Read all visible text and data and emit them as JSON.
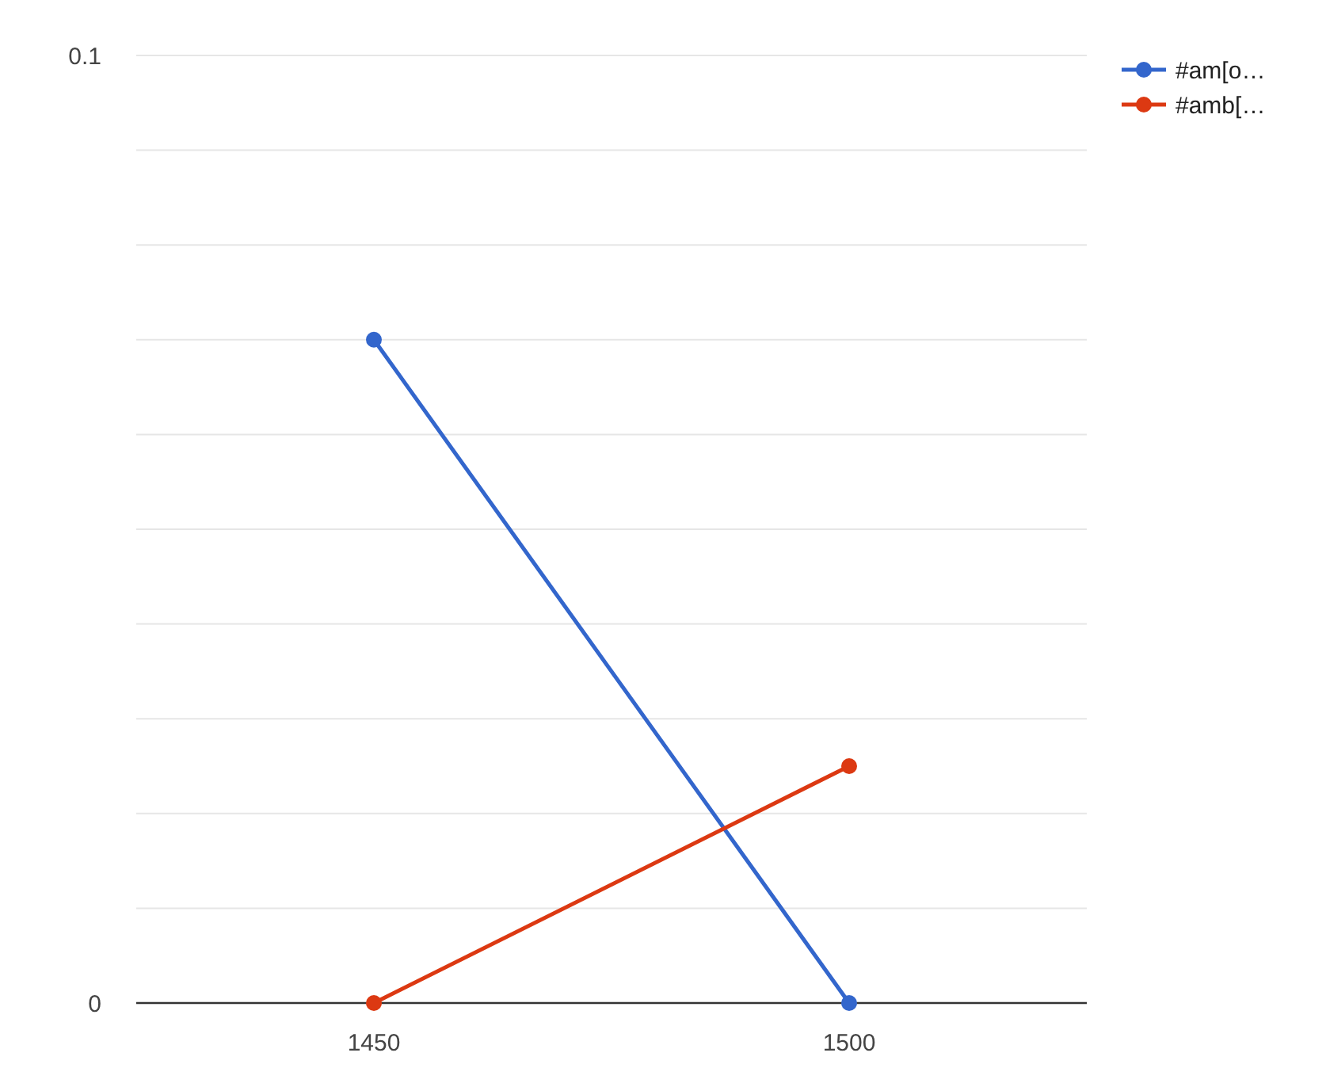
{
  "chart_data": {
    "type": "line",
    "x": [
      1450,
      1500
    ],
    "xlim": [
      1425,
      1525
    ],
    "xticks": [
      1450,
      1500
    ],
    "ylim": [
      0,
      0.1
    ],
    "yticks": [
      0,
      {
        "value": 0.01,
        "label": null
      },
      {
        "value": 0.02,
        "label": null
      },
      {
        "value": 0.03,
        "label": null
      },
      {
        "value": 0.04,
        "label": null
      },
      {
        "value": 0.05,
        "label": null
      },
      {
        "value": 0.06,
        "label": null
      },
      {
        "value": 0.07,
        "label": null
      },
      {
        "value": 0.08,
        "label": null
      },
      {
        "value": 0.09,
        "label": null
      },
      0.1
    ],
    "series": [
      {
        "name": "#am[o…",
        "color": "#3366cc",
        "values": [
          0.07,
          0
        ]
      },
      {
        "name": "#amb[…",
        "color": "#dc3912",
        "values": [
          0,
          0.025
        ]
      }
    ],
    "grid": "y",
    "legend": "top right",
    "marker": "circle",
    "line_style": "solid"
  }
}
